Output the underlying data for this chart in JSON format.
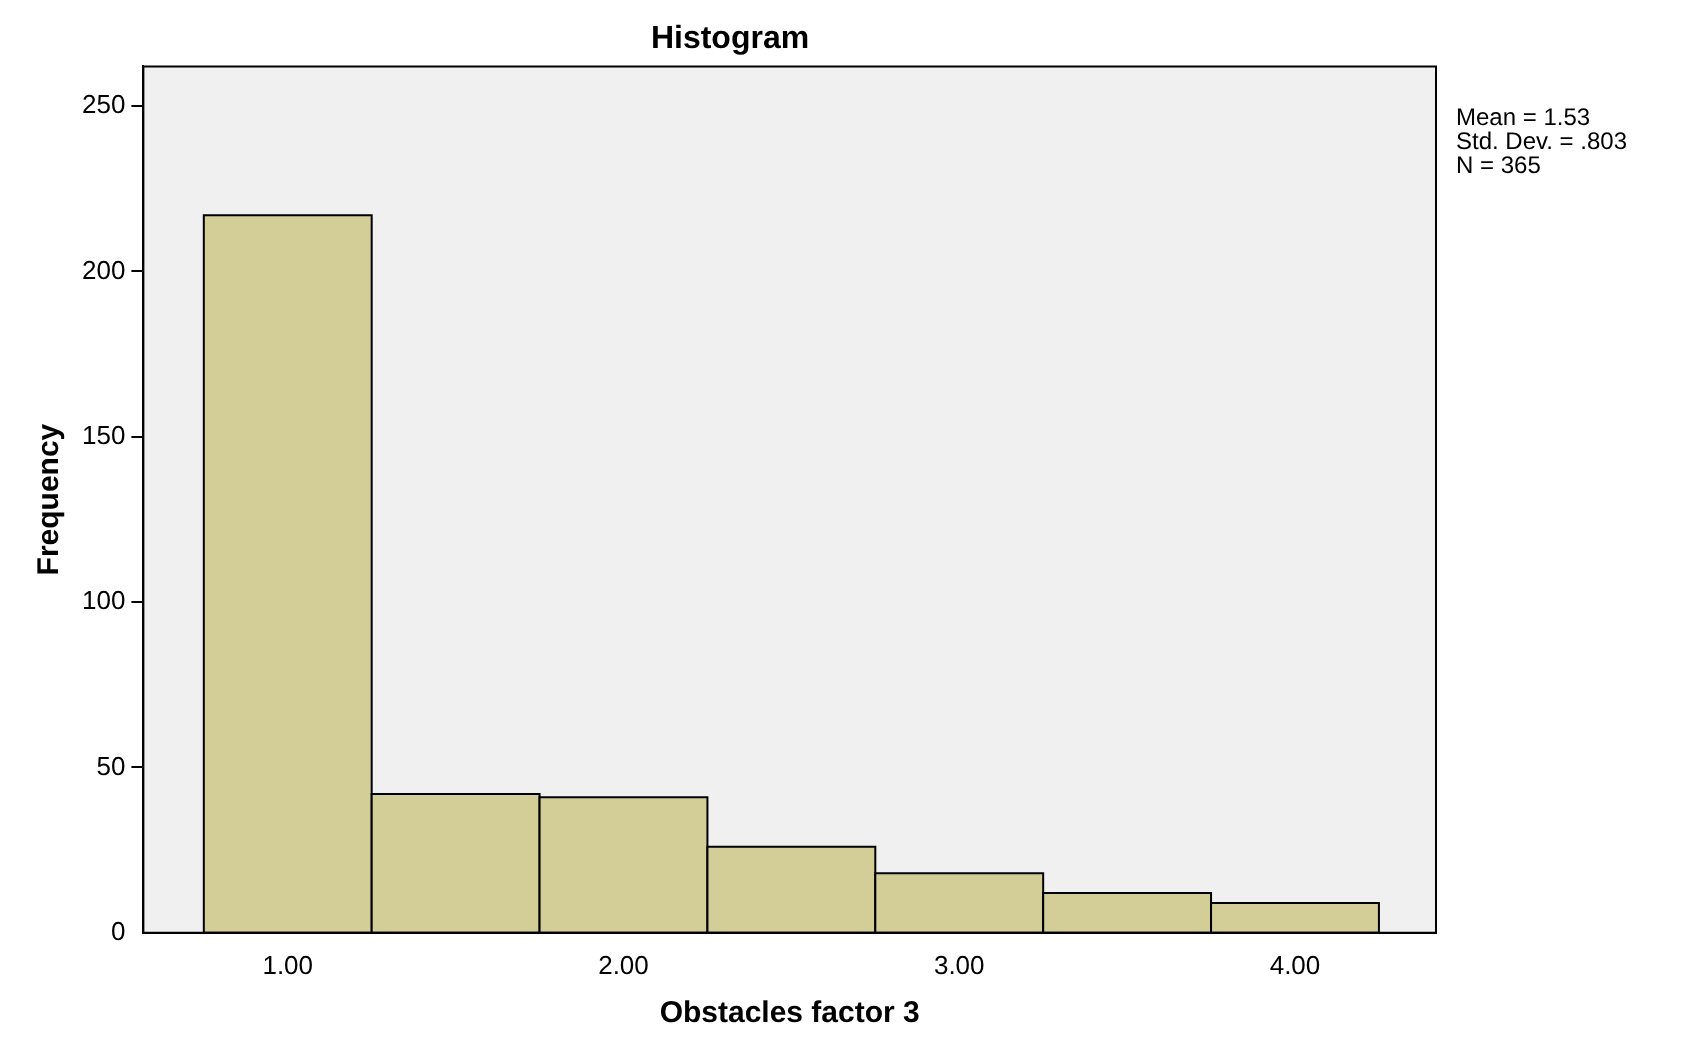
{
  "chart_data": {
    "type": "histogram",
    "title": "Histogram",
    "xlabel": "Obstacles factor 3",
    "ylabel": "Frequency",
    "bins": [
      0.75,
      1.25,
      1.75,
      2.25,
      2.75,
      3.25,
      3.75,
      4.25
    ],
    "values": [
      217,
      42,
      41,
      26,
      18,
      12,
      9
    ],
    "color": "#d3ce97",
    "xlim": [
      0.57,
      4.42
    ],
    "xticks": [
      {
        "value": 1,
        "label": "1.00"
      },
      {
        "value": 2,
        "label": "2.00"
      },
      {
        "value": 3,
        "label": "3.00"
      },
      {
        "value": 4,
        "label": "4.00"
      }
    ],
    "ylim": [
      0,
      262
    ],
    "yticks": [
      0,
      50,
      100,
      150,
      200,
      250
    ],
    "grid": false,
    "annotations": [
      "Mean = 1.53",
      "Std. Dev. = .803",
      "N = 365"
    ]
  }
}
